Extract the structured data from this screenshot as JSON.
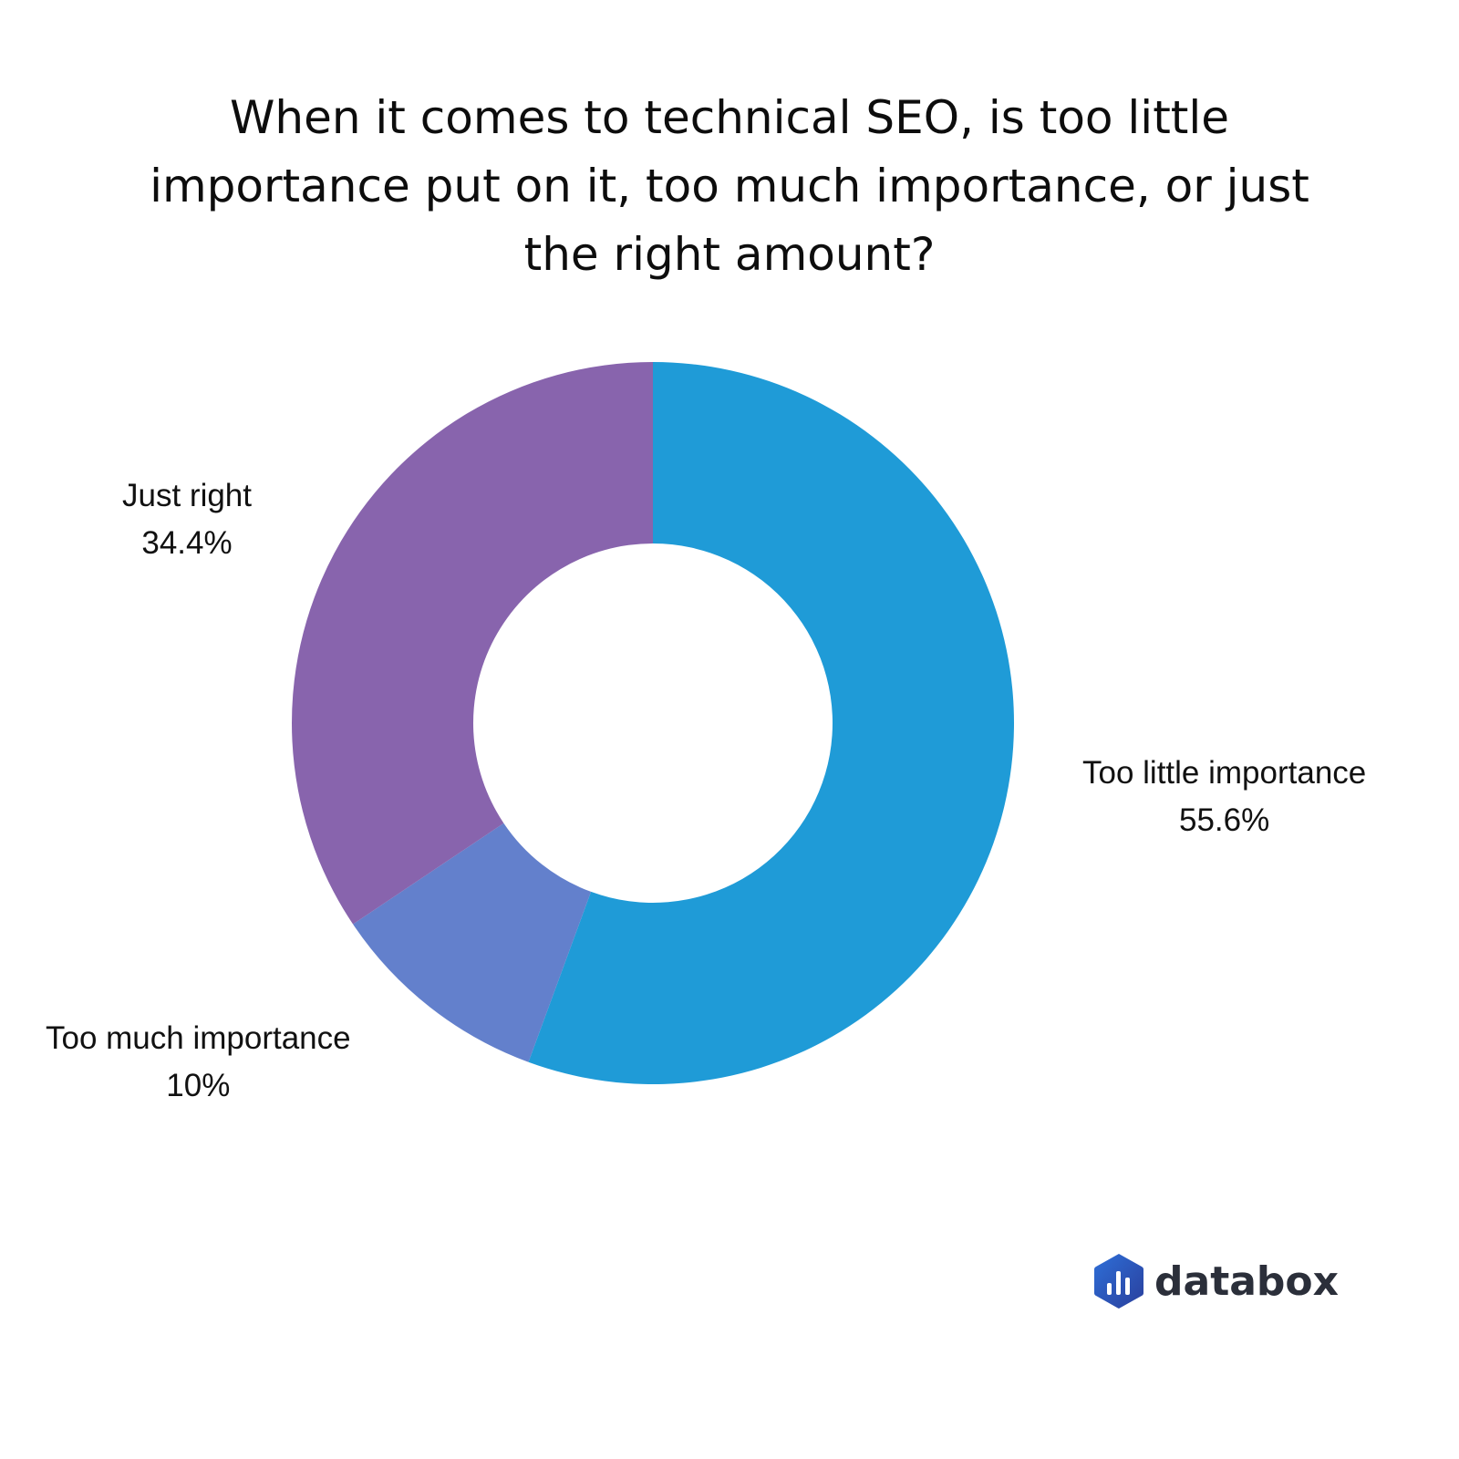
{
  "chart_data": {
    "type": "pie",
    "title_lines": [
      "When it comes to technical SEO, is too little",
      "importance put on it, too much importance, or just",
      "the right amount?"
    ],
    "slices": [
      {
        "label": "Too little importance",
        "value": 55.6,
        "value_label": "55.6%",
        "color": "#1f9bd7"
      },
      {
        "label": "Too much importance",
        "value": 10,
        "value_label": "10%",
        "color": "#6380cc"
      },
      {
        "label": "Just right",
        "value": 34.4,
        "value_label": "34.4%",
        "color": "#8864ad"
      }
    ],
    "start_angle": "12 o'clock",
    "direction": "clockwise",
    "donut": true
  },
  "brand": {
    "name": "databox",
    "icon": "databox-logo-icon"
  }
}
